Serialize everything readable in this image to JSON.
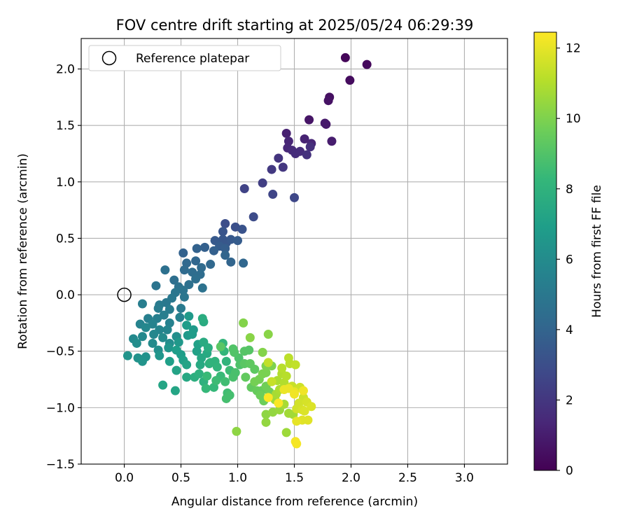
{
  "chart_data": {
    "type": "scatter",
    "title": "FOV centre drift starting at 2025/05/24 06:29:39",
    "xlabel": "Angular distance from reference (arcmin)",
    "ylabel": "Rotation from reference (arcmin)",
    "xlim": [
      -0.38,
      3.38
    ],
    "ylim": [
      -1.5,
      2.27
    ],
    "xticks": [
      "0.0",
      "0.5",
      "1.0",
      "1.5",
      "2.0",
      "2.5",
      "3.0"
    ],
    "xtick_values": [
      0,
      0.5,
      1,
      1.5,
      2,
      2.5,
      3
    ],
    "yticks": [
      "−1.5",
      "−1.0",
      "−0.5",
      "0.0",
      "0.5",
      "1.0",
      "1.5",
      "2.0"
    ],
    "ytick_values": [
      -1.5,
      -1,
      -0.5,
      0,
      0.5,
      1,
      1.5,
      2
    ],
    "grid": true,
    "legend": {
      "position": "upper-left",
      "entry": "Reference platepar"
    },
    "reference_point": {
      "x": 0.0,
      "y": 0.0
    },
    "colorbar": {
      "label": "Hours from first FF file",
      "range": [
        0,
        12.45
      ],
      "ticks": [
        "0",
        "2",
        "4",
        "6",
        "8",
        "10",
        "12"
      ],
      "tick_values": [
        0,
        2,
        4,
        6,
        8,
        10,
        12
      ],
      "colormap": "viridis",
      "colors": [
        "#440154",
        "#482878",
        "#3e4989",
        "#31688e",
        "#26828e",
        "#1f9e89",
        "#35b779",
        "#6ece58",
        "#b5de2b",
        "#fde725"
      ]
    },
    "points": [
      [
        2.14,
        2.04,
        0.3
      ],
      [
        1.95,
        2.1,
        0.2
      ],
      [
        1.99,
        1.9,
        0.4
      ],
      [
        1.81,
        1.75,
        0.5
      ],
      [
        1.8,
        1.72,
        0.6
      ],
      [
        1.63,
        1.55,
        0.7
      ],
      [
        1.78,
        1.51,
        0.8
      ],
      [
        1.77,
        1.52,
        0.9
      ],
      [
        1.83,
        1.36,
        1.0
      ],
      [
        1.43,
        1.43,
        1.1
      ],
      [
        1.59,
        1.38,
        1.2
      ],
      [
        1.45,
        1.36,
        1.3
      ],
      [
        1.65,
        1.34,
        1.3
      ],
      [
        1.44,
        1.3,
        1.4
      ],
      [
        1.48,
        1.28,
        1.5
      ],
      [
        1.51,
        1.25,
        1.6
      ],
      [
        1.55,
        1.27,
        1.6
      ],
      [
        1.64,
        1.31,
        1.7
      ],
      [
        1.61,
        1.24,
        1.8
      ],
      [
        1.36,
        1.21,
        1.9
      ],
      [
        1.4,
        1.13,
        2.0
      ],
      [
        1.3,
        1.11,
        2.1
      ],
      [
        1.22,
        0.99,
        2.3
      ],
      [
        1.06,
        0.94,
        2.5
      ],
      [
        1.31,
        0.89,
        2.6
      ],
      [
        1.5,
        0.86,
        2.7
      ],
      [
        1.14,
        0.69,
        2.9
      ],
      [
        0.89,
        0.63,
        3.0
      ],
      [
        0.98,
        0.6,
        3.1
      ],
      [
        1.04,
        0.58,
        3.2
      ],
      [
        0.87,
        0.56,
        3.3
      ],
      [
        0.87,
        0.49,
        3.4
      ],
      [
        0.9,
        0.46,
        3.4
      ],
      [
        0.8,
        0.48,
        3.5
      ],
      [
        0.94,
        0.49,
        3.5
      ],
      [
        1.0,
        0.48,
        3.6
      ],
      [
        0.84,
        0.43,
        3.6
      ],
      [
        0.89,
        0.41,
        3.7
      ],
      [
        0.79,
        0.39,
        3.8
      ],
      [
        0.71,
        0.42,
        3.8
      ],
      [
        0.64,
        0.41,
        3.9
      ],
      [
        0.52,
        0.37,
        3.9
      ],
      [
        0.89,
        0.35,
        4.0
      ],
      [
        0.94,
        0.29,
        4.0
      ],
      [
        1.05,
        0.28,
        4.1
      ],
      [
        0.63,
        0.3,
        4.1
      ],
      [
        0.76,
        0.27,
        4.2
      ],
      [
        0.55,
        0.28,
        4.2
      ],
      [
        0.68,
        0.24,
        4.3
      ],
      [
        0.53,
        0.22,
        4.3
      ],
      [
        0.6,
        0.2,
        4.4
      ],
      [
        0.67,
        0.18,
        4.4
      ],
      [
        0.63,
        0.14,
        4.5
      ],
      [
        0.44,
        0.13,
        4.5
      ],
      [
        0.36,
        0.22,
        4.6
      ],
      [
        0.57,
        0.09,
        4.6
      ],
      [
        0.69,
        0.06,
        4.7
      ],
      [
        0.48,
        0.07,
        4.7
      ],
      [
        0.28,
        0.08,
        4.8
      ],
      [
        0.52,
        0.04,
        4.8
      ],
      [
        0.45,
        0.02,
        4.9
      ],
      [
        0.53,
        -0.02,
        4.9
      ],
      [
        0.42,
        -0.03,
        5.0
      ],
      [
        0.37,
        -0.07,
        5.0
      ],
      [
        0.31,
        -0.09,
        5.1
      ],
      [
        0.5,
        -0.12,
        5.1
      ],
      [
        0.4,
        -0.13,
        5.2
      ],
      [
        0.3,
        -0.12,
        5.2
      ],
      [
        0.16,
        -0.08,
        5.3
      ],
      [
        0.35,
        -0.18,
        5.3
      ],
      [
        0.29,
        -0.21,
        5.4
      ],
      [
        0.21,
        -0.21,
        5.4
      ],
      [
        0.49,
        -0.2,
        5.5
      ],
      [
        0.4,
        -0.25,
        5.5
      ],
      [
        0.25,
        -0.26,
        5.6
      ],
      [
        0.14,
        -0.26,
        5.6
      ],
      [
        0.31,
        -0.31,
        5.7
      ],
      [
        0.38,
        -0.31,
        5.7
      ],
      [
        0.19,
        -0.29,
        5.8
      ],
      [
        0.26,
        -0.35,
        5.8
      ],
      [
        0.08,
        -0.39,
        5.9
      ],
      [
        0.16,
        -0.37,
        5.9
      ],
      [
        0.34,
        -0.38,
        6.0
      ],
      [
        0.25,
        -0.43,
        6.0
      ],
      [
        0.11,
        -0.43,
        6.1
      ],
      [
        0.4,
        -0.43,
        6.1
      ],
      [
        0.46,
        -0.37,
        6.2
      ],
      [
        0.3,
        -0.49,
        6.2
      ],
      [
        0.12,
        -0.56,
        6.3
      ],
      [
        0.19,
        -0.55,
        6.3
      ],
      [
        0.03,
        -0.54,
        6.4
      ],
      [
        0.16,
        -0.59,
        6.4
      ],
      [
        0.31,
        -0.54,
        6.5
      ],
      [
        0.39,
        -0.47,
        6.5
      ],
      [
        0.48,
        -0.42,
        6.6
      ],
      [
        0.56,
        -0.36,
        6.6
      ],
      [
        0.61,
        -0.31,
        6.7
      ],
      [
        0.57,
        -0.19,
        6.7
      ],
      [
        0.55,
        -0.27,
        6.8
      ],
      [
        0.6,
        -0.35,
        6.8
      ],
      [
        0.46,
        -0.49,
        6.9
      ],
      [
        0.5,
        -0.53,
        6.9
      ],
      [
        0.4,
        -0.59,
        7.0
      ],
      [
        0.52,
        -0.58,
        7.0
      ],
      [
        0.65,
        -0.44,
        7.1
      ],
      [
        0.64,
        -0.5,
        7.1
      ],
      [
        0.55,
        -0.62,
        7.2
      ],
      [
        0.46,
        -0.67,
        7.2
      ],
      [
        0.34,
        -0.8,
        7.3
      ],
      [
        0.45,
        -0.85,
        7.3
      ],
      [
        0.55,
        -0.73,
        7.4
      ],
      [
        0.68,
        -0.56,
        7.4
      ],
      [
        0.67,
        -0.62,
        7.5
      ],
      [
        0.73,
        -0.52,
        7.5
      ],
      [
        0.7,
        -0.42,
        7.6
      ],
      [
        0.7,
        -0.24,
        7.6
      ],
      [
        0.69,
        -0.21,
        7.7
      ],
      [
        0.74,
        -0.47,
        7.7
      ],
      [
        0.75,
        -0.61,
        7.8
      ],
      [
        0.62,
        -0.73,
        7.8
      ],
      [
        0.66,
        -0.7,
        7.9
      ],
      [
        0.7,
        -0.77,
        7.9
      ],
      [
        0.76,
        -0.6,
        8.0
      ],
      [
        0.8,
        -0.59,
        8.0
      ],
      [
        0.82,
        -0.64,
        8.1
      ],
      [
        0.9,
        -0.59,
        8.1
      ],
      [
        0.87,
        -0.43,
        8.2
      ],
      [
        0.88,
        -0.5,
        8.2
      ],
      [
        0.72,
        -0.83,
        8.3
      ],
      [
        0.79,
        -0.82,
        8.3
      ],
      [
        0.73,
        -0.72,
        8.4
      ],
      [
        0.85,
        -0.72,
        8.4
      ],
      [
        0.93,
        -0.67,
        8.5
      ],
      [
        0.81,
        -0.76,
        8.5
      ],
      [
        0.89,
        -0.77,
        8.6
      ],
      [
        0.91,
        -0.87,
        8.6
      ],
      [
        0.9,
        -0.92,
        8.7
      ],
      [
        0.93,
        -0.89,
        8.7
      ],
      [
        0.96,
        -0.73,
        8.8
      ],
      [
        0.98,
        -0.69,
        8.8
      ],
      [
        1.02,
        -0.62,
        8.9
      ],
      [
        1.01,
        -0.56,
        8.9
      ],
      [
        0.97,
        -0.51,
        9.0
      ],
      [
        0.96,
        -0.48,
        9.0
      ],
      [
        1.06,
        -0.5,
        9.1
      ],
      [
        1.1,
        -0.49,
        9.1
      ],
      [
        0.85,
        -0.46,
        9.2
      ],
      [
        1.06,
        -0.61,
        9.2
      ],
      [
        1.11,
        -0.61,
        9.3
      ],
      [
        1.15,
        -0.66,
        9.3
      ],
      [
        1.07,
        -0.73,
        9.4
      ],
      [
        1.12,
        -0.82,
        9.4
      ],
      [
        1.17,
        -0.85,
        9.5
      ],
      [
        1.21,
        -0.85,
        9.5
      ],
      [
        1.2,
        -0.89,
        9.6
      ],
      [
        1.23,
        -0.94,
        9.6
      ],
      [
        1.28,
        -0.86,
        9.7
      ],
      [
        1.25,
        -0.81,
        9.7
      ],
      [
        1.19,
        -0.75,
        9.8
      ],
      [
        1.15,
        -0.77,
        9.8
      ],
      [
        1.22,
        -0.7,
        9.9
      ],
      [
        1.25,
        -0.69,
        9.9
      ],
      [
        1.25,
        -0.63,
        10.0
      ],
      [
        1.3,
        -0.63,
        10.0
      ],
      [
        1.22,
        -0.51,
        10.1
      ],
      [
        1.05,
        -0.25,
        10.1
      ],
      [
        1.11,
        -0.38,
        10.2
      ],
      [
        1.27,
        -0.35,
        10.2
      ],
      [
        0.99,
        -1.21,
        10.3
      ],
      [
        1.25,
        -1.06,
        10.3
      ],
      [
        1.25,
        -1.13,
        10.4
      ],
      [
        1.31,
        -1.04,
        10.4
      ],
      [
        1.37,
        -1.02,
        10.5
      ],
      [
        1.38,
        -0.98,
        10.5
      ],
      [
        1.33,
        -0.93,
        10.6
      ],
      [
        1.43,
        -1.22,
        10.6
      ],
      [
        1.45,
        -1.05,
        10.7
      ],
      [
        1.49,
        -1.06,
        10.7
      ],
      [
        1.41,
        -0.97,
        10.8
      ],
      [
        1.34,
        -0.88,
        10.8
      ],
      [
        1.37,
        -0.84,
        10.9
      ],
      [
        1.35,
        -0.76,
        10.9
      ],
      [
        1.41,
        -0.78,
        11.0
      ],
      [
        1.39,
        -0.7,
        11.0
      ],
      [
        1.43,
        -0.72,
        11.1
      ],
      [
        1.39,
        -0.65,
        11.1
      ],
      [
        1.46,
        -0.61,
        11.2
      ],
      [
        1.45,
        -0.56,
        11.2
      ],
      [
        1.51,
        -0.62,
        11.3
      ],
      [
        1.27,
        -0.6,
        11.3
      ],
      [
        1.3,
        -0.77,
        11.4
      ],
      [
        1.48,
        -0.81,
        11.4
      ],
      [
        1.55,
        -0.82,
        11.5
      ],
      [
        1.58,
        -0.91,
        11.5
      ],
      [
        1.54,
        -0.96,
        11.6
      ],
      [
        1.52,
        -1.01,
        11.6
      ],
      [
        1.57,
        -1.02,
        11.7
      ],
      [
        1.61,
        -0.95,
        11.7
      ],
      [
        1.65,
        -0.99,
        11.8
      ],
      [
        1.59,
        -1.03,
        11.8
      ],
      [
        1.62,
        -1.11,
        11.9
      ],
      [
        1.57,
        -1.11,
        11.9
      ],
      [
        1.52,
        -1.12,
        12.0
      ],
      [
        1.5,
        -0.86,
        12.0
      ],
      [
        1.45,
        -0.83,
        12.1
      ],
      [
        1.41,
        -0.84,
        12.1
      ],
      [
        1.5,
        -0.88,
        12.2
      ],
      [
        1.58,
        -0.85,
        12.2
      ],
      [
        1.52,
        -1.32,
        12.3
      ],
      [
        1.51,
        -1.3,
        12.3
      ],
      [
        1.27,
        -0.91,
        12.4
      ],
      [
        1.36,
        -0.96,
        12.4
      ]
    ]
  }
}
